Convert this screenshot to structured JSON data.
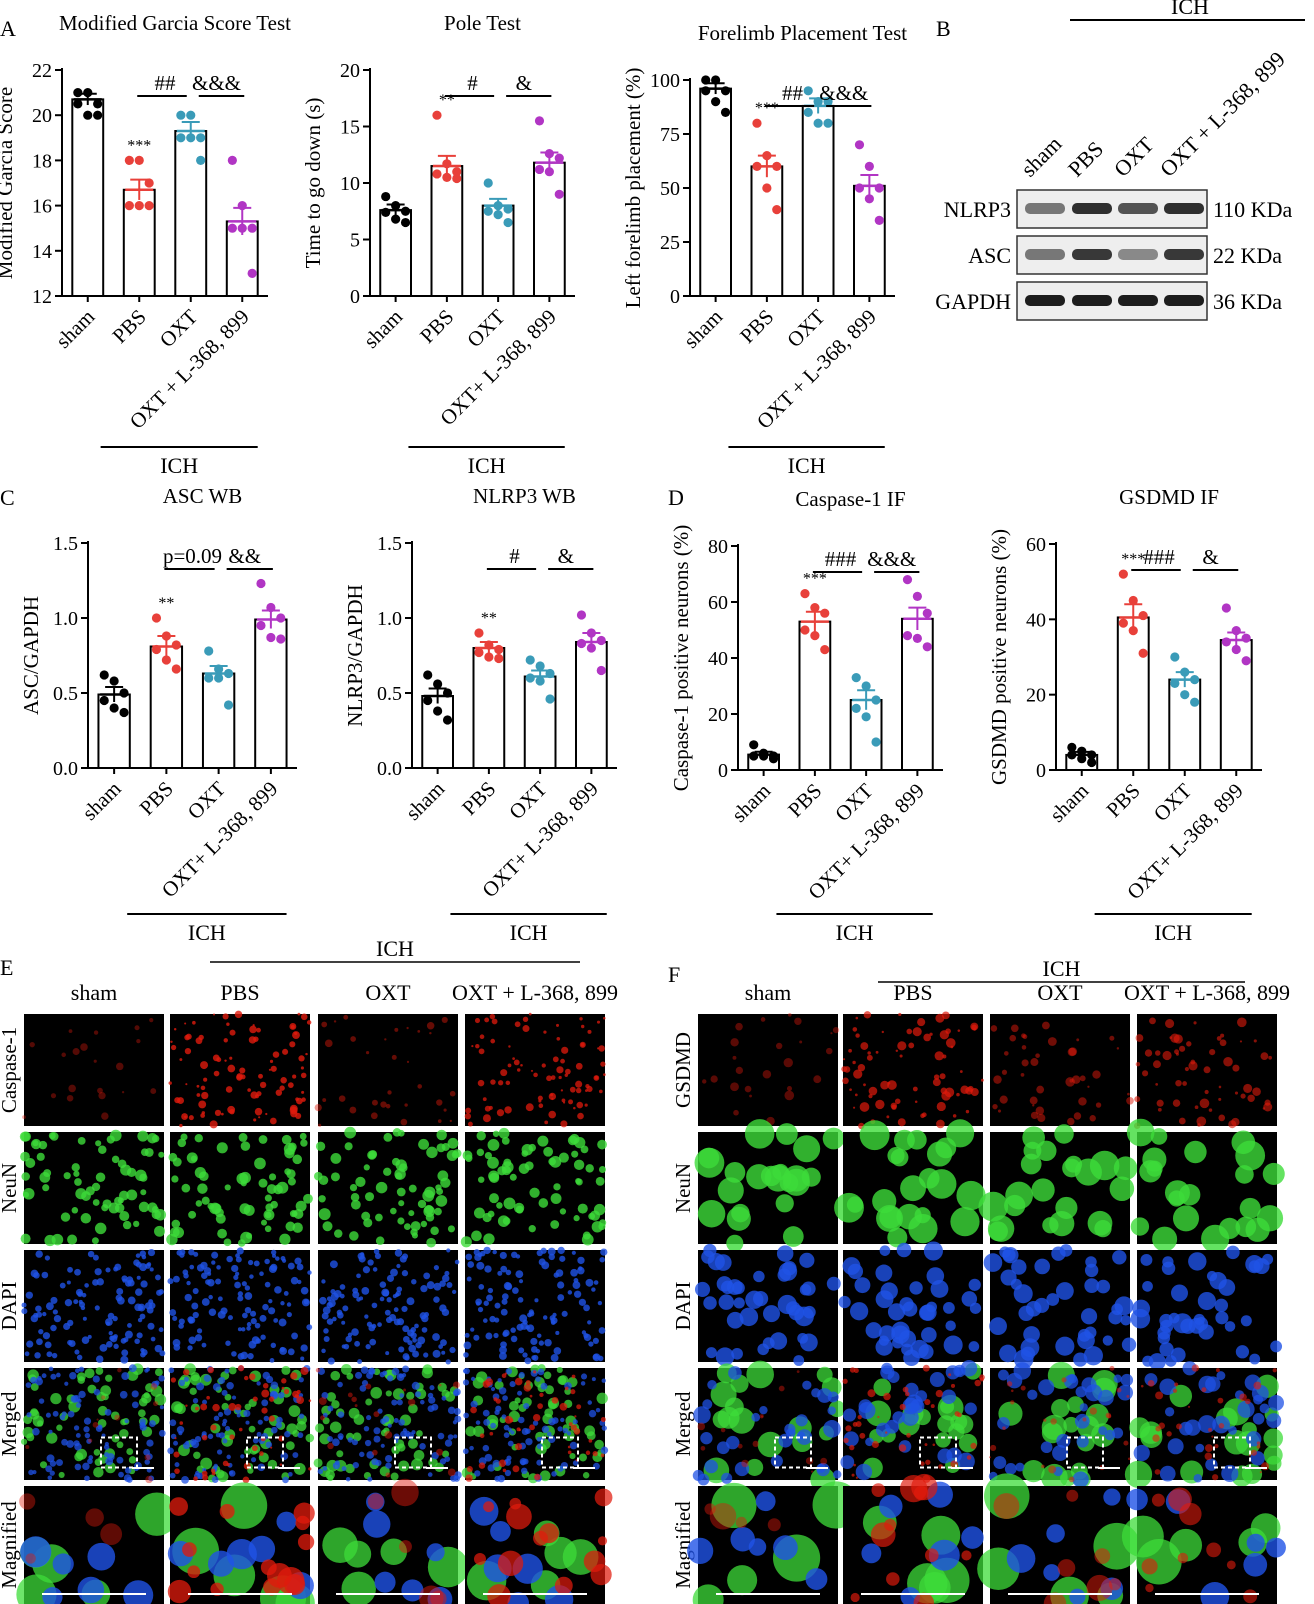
{
  "panel_letters": {
    "A": "A",
    "B": "B",
    "C": "C",
    "D": "D",
    "E": "E",
    "F": "F"
  },
  "groups": [
    "sham",
    "PBS",
    "OXT",
    "OXT + L-368, 899"
  ],
  "group_colors": [
    "#000000",
    "#e8403a",
    "#3a9bb8",
    "#b135c4"
  ],
  "ich_label": "ICH",
  "chart_data": [
    {
      "type": "bar",
      "panel": "A",
      "title": "Modified Garcia Score Test",
      "ylabel": "Modified Garcia Score",
      "ylim": [
        12,
        22
      ],
      "yticks": [
        12,
        14,
        16,
        18,
        20,
        22
      ],
      "categories": [
        "sham",
        "PBS",
        "OXT",
        "OXT + L-368, 899"
      ],
      "values": [
        20.7,
        16.7,
        19.3,
        15.3
      ],
      "sem": [
        0.25,
        0.45,
        0.4,
        0.6
      ],
      "points": [
        [
          21,
          21,
          20.5,
          20.5,
          20,
          20
        ],
        [
          18,
          18,
          17,
          16,
          16,
          16
        ],
        [
          20,
          20,
          19,
          19,
          19,
          18
        ],
        [
          18,
          16,
          15,
          15,
          15,
          13
        ]
      ],
      "significance": [
        {
          "label": "***",
          "over": 1
        },
        {
          "label": "##",
          "from": 1,
          "to": 2
        },
        {
          "label": "&&&",
          "from": 2,
          "to": 3
        }
      ],
      "xlabels": [
        "sham",
        "PBS",
        "OXT",
        "OXT + L-368, 899"
      ]
    },
    {
      "type": "bar",
      "panel": "A",
      "title": "Pole Test",
      "ylabel": "Time to go down (s)",
      "ylim": [
        0,
        20
      ],
      "yticks": [
        0,
        5,
        10,
        15,
        20
      ],
      "categories": [
        "sham",
        "PBS",
        "OXT",
        "OXT + L-368, 899"
      ],
      "values": [
        7.6,
        11.5,
        8.0,
        11.8
      ],
      "sem": [
        0.5,
        0.9,
        0.6,
        0.9
      ],
      "points": [
        [
          8.8,
          8,
          7.5,
          7.4,
          6.8,
          6.5
        ],
        [
          16,
          11.7,
          11,
          10.8,
          10.5,
          10.4
        ],
        [
          10,
          8,
          7.7,
          7.5,
          7.2,
          6.5
        ],
        [
          15.5,
          12.6,
          12.2,
          11.2,
          11,
          9
        ]
      ],
      "significance": [
        {
          "label": "**",
          "over": 1
        },
        {
          "label": "#",
          "from": 1,
          "to": 2
        },
        {
          "label": "&",
          "from": 2,
          "to": 3
        }
      ],
      "xlabels": [
        "sham",
        "PBS",
        "OXT",
        "OXT+ L-368, 899"
      ]
    },
    {
      "type": "bar",
      "panel": "A",
      "title": "Forelimb Placement Test",
      "ylabel": "Left forelimb placement (%)",
      "ylim": [
        0,
        100
      ],
      "yticks": [
        0,
        25,
        50,
        75,
        100
      ],
      "categories": [
        "sham",
        "PBS",
        "OXT",
        "OXT + L-368, 899"
      ],
      "values": [
        96,
        60,
        88,
        51
      ],
      "sem": [
        2.5,
        5,
        3.5,
        5
      ],
      "points": [
        [
          100,
          100,
          95,
          95,
          90,
          85
        ],
        [
          80,
          65,
          60,
          60,
          50,
          40
        ],
        [
          95,
          90,
          90,
          85,
          80,
          80
        ],
        [
          70,
          60,
          50,
          50,
          45,
          35
        ]
      ],
      "significance": [
        {
          "label": "***",
          "over": 1
        },
        {
          "label": "##",
          "from": 1,
          "to": 2
        },
        {
          "label": "&&&",
          "from": 2,
          "to": 3
        }
      ],
      "xlabels": [
        "sham",
        "PBS",
        "OXT",
        "OXT + L-368, 899"
      ]
    },
    {
      "type": "bar",
      "panel": "C",
      "title": "ASC WB",
      "ylabel": "ASC/GAPDH",
      "ylim": [
        0,
        1.5
      ],
      "yticks": [
        "0.0",
        "0.5",
        "1.0",
        "1.5"
      ],
      "categories": [
        "sham",
        "PBS",
        "OXT",
        "OXT + L-368, 899"
      ],
      "values": [
        0.49,
        0.81,
        0.63,
        0.99
      ],
      "sem": [
        0.05,
        0.07,
        0.05,
        0.06
      ],
      "points": [
        [
          0.62,
          0.58,
          0.5,
          0.45,
          0.4,
          0.37
        ],
        [
          1.0,
          0.88,
          0.82,
          0.79,
          0.72,
          0.66
        ],
        [
          0.78,
          0.66,
          0.63,
          0.6,
          0.6,
          0.42
        ],
        [
          1.23,
          1.07,
          1.0,
          0.95,
          0.87,
          0.86
        ]
      ],
      "significance": [
        {
          "label": "**",
          "over": 1
        },
        {
          "label": "p=0.09",
          "from": 1,
          "to": 2
        },
        {
          "label": "&&",
          "from": 2,
          "to": 3
        }
      ],
      "xlabels": [
        "sham",
        "PBS",
        "OXT",
        "OXT+ L-368, 899"
      ]
    },
    {
      "type": "bar",
      "panel": "C",
      "title": "NLRP3 WB",
      "ylabel": "NLRP3/GAPDH",
      "ylim": [
        0,
        1.5
      ],
      "yticks": [
        "0.0",
        "0.5",
        "1.0",
        "1.5"
      ],
      "categories": [
        "sham",
        "PBS",
        "OXT",
        "OXT + L-368, 899"
      ],
      "values": [
        0.48,
        0.8,
        0.61,
        0.84
      ],
      "sem": [
        0.05,
        0.04,
        0.04,
        0.06
      ],
      "points": [
        [
          0.62,
          0.56,
          0.5,
          0.45,
          0.38,
          0.32
        ],
        [
          0.9,
          0.82,
          0.79,
          0.77,
          0.74,
          0.73
        ],
        [
          0.72,
          0.68,
          0.63,
          0.6,
          0.58,
          0.46
        ],
        [
          1.02,
          0.9,
          0.85,
          0.83,
          0.8,
          0.65
        ]
      ],
      "significance": [
        {
          "label": "**",
          "over": 1
        },
        {
          "label": "#",
          "from": 1,
          "to": 2
        },
        {
          "label": "&",
          "from": 2,
          "to": 3
        }
      ],
      "xlabels": [
        "sham",
        "PBS",
        "OXT",
        "OXT+ L-368, 899"
      ]
    },
    {
      "type": "bar",
      "panel": "D",
      "title": "Caspase-1 IF",
      "ylabel": "Caspase-1 positive neurons (%)",
      "ylim": [
        0,
        80
      ],
      "yticks": [
        0,
        20,
        40,
        60,
        80
      ],
      "categories": [
        "sham",
        "PBS",
        "OXT",
        "OXT + L-368, 899"
      ],
      "values": [
        5.5,
        53,
        25,
        54
      ],
      "sem": [
        1,
        3.5,
        3.5,
        4
      ],
      "points": [
        [
          9,
          6,
          5,
          5,
          5,
          4
        ],
        [
          63,
          58,
          56,
          50,
          48,
          43
        ],
        [
          33,
          30,
          25,
          22,
          19,
          10
        ],
        [
          68,
          62,
          56,
          48,
          47,
          44
        ]
      ],
      "significance": [
        {
          "label": "***",
          "over": 1
        },
        {
          "label": "###",
          "from": 1,
          "to": 2
        },
        {
          "label": "&&&",
          "from": 2,
          "to": 3
        }
      ],
      "xlabels": [
        "sham",
        "PBS",
        "OXT",
        "OXT+ L-368, 899"
      ]
    },
    {
      "type": "bar",
      "panel": "D",
      "title": "GSDMD IF",
      "ylabel": "GSDMD positive neurons (%)",
      "ylim": [
        0,
        60
      ],
      "yticks": [
        0,
        20,
        40,
        60
      ],
      "categories": [
        "sham",
        "PBS",
        "OXT",
        "OXT + L-368, 899"
      ],
      "values": [
        4,
        40.5,
        24,
        34.5
      ],
      "sem": [
        0.8,
        3.5,
        2,
        2
      ],
      "points": [
        [
          6,
          5,
          4,
          4,
          3,
          2
        ],
        [
          52,
          45,
          41,
          39,
          37,
          31
        ],
        [
          30,
          26,
          24,
          23,
          20,
          18
        ],
        [
          43,
          37,
          35,
          34,
          32,
          29
        ]
      ],
      "significance": [
        {
          "label": "***",
          "over": 1
        },
        {
          "label": "###",
          "from": 1,
          "to": 2
        },
        {
          "label": "&",
          "from": 2,
          "to": 3
        }
      ],
      "xlabels": [
        "sham",
        "PBS",
        "OXT",
        "OXT+ L-368, 899"
      ]
    }
  ],
  "western_blot": {
    "lane_labels": [
      "sham",
      "PBS",
      "OXT",
      "OXT + L-368, 899"
    ],
    "rows": [
      {
        "protein": "NLRP3",
        "size": "110 KDa",
        "intensities": [
          0.45,
          0.85,
          0.65,
          0.85
        ]
      },
      {
        "protein": "ASC",
        "size": "22 KDa",
        "intensities": [
          0.45,
          0.8,
          0.35,
          0.8
        ]
      },
      {
        "protein": "GAPDH",
        "size": "36 KDa",
        "intensities": [
          0.95,
          0.95,
          0.95,
          0.95
        ]
      }
    ]
  },
  "micrographs_E": {
    "columns": [
      "sham",
      "PBS",
      "OXT",
      "OXT + L-368, 899"
    ],
    "rows": [
      "Caspase-1",
      "NeuN",
      "DAPI",
      "Merged",
      "Magnified"
    ],
    "red_level": [
      0.05,
      0.9,
      0.2,
      0.8
    ]
  },
  "micrographs_F": {
    "columns": [
      "sham",
      "PBS",
      "OXT",
      "OXT + L-368, 899"
    ],
    "rows": [
      "GSDMD",
      "NeuN",
      "DAPI",
      "Merged",
      "Magnified"
    ],
    "red_level": [
      0.1,
      0.7,
      0.3,
      0.5
    ]
  },
  "colors": {
    "red_stain": "#e01a0c",
    "green_stain": "#3ddc3a",
    "blue_stain": "#1f52e6"
  }
}
